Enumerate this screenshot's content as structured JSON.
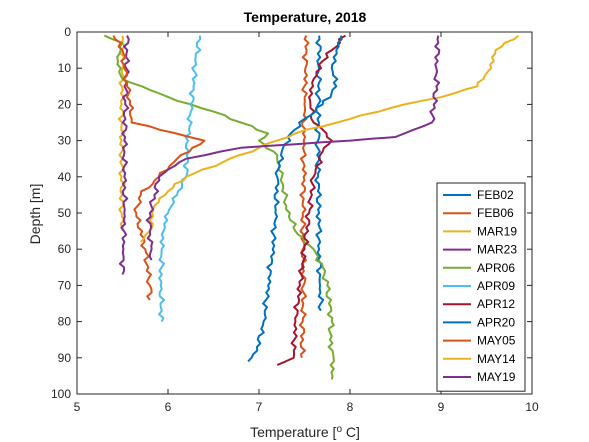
{
  "chart_data": {
    "type": "line",
    "title": "Temperature, 2018",
    "xlabel": "Temperature [",
    "xlabel_sup": "o",
    "xlabel_end": " C]",
    "ylabel": "Depth [m]",
    "xlim": [
      5,
      10
    ],
    "ylim": [
      0,
      100
    ],
    "y_reversed": true,
    "xticks": [
      "5",
      "6",
      "7",
      "8",
      "9",
      "10"
    ],
    "yticks": [
      "0",
      "10",
      "20",
      "30",
      "40",
      "50",
      "60",
      "70",
      "80",
      "90",
      "100"
    ],
    "grid": false,
    "legend_position": "bottom-right",
    "series": [
      {
        "name": "FEB02",
        "color": "#0072BD",
        "points": [
          [
            7.66,
            1
          ],
          [
            7.66,
            10
          ],
          [
            7.65,
            20
          ],
          [
            7.65,
            30
          ],
          [
            7.65,
            40
          ],
          [
            7.66,
            50
          ],
          [
            7.66,
            60
          ],
          [
            7.67,
            70
          ],
          [
            7.68,
            77
          ]
        ]
      },
      {
        "name": "FEB06",
        "color": "#D95319",
        "points": [
          [
            7.52,
            1
          ],
          [
            7.51,
            10
          ],
          [
            7.5,
            20
          ],
          [
            7.49,
            30
          ],
          [
            7.49,
            40
          ],
          [
            7.48,
            50
          ],
          [
            7.48,
            60
          ],
          [
            7.49,
            70
          ],
          [
            7.48,
            80
          ],
          [
            7.47,
            90
          ]
        ]
      },
      {
        "name": "MAR19",
        "color": "#EDB120",
        "points": [
          [
            5.5,
            1
          ],
          [
            5.5,
            10
          ],
          [
            5.49,
            20
          ],
          [
            5.49,
            30
          ],
          [
            5.49,
            40
          ],
          [
            5.49,
            50
          ],
          [
            5.5,
            55
          ]
        ]
      },
      {
        "name": "MAR23",
        "color": "#7E2F8E",
        "points": [
          [
            5.55,
            1
          ],
          [
            5.54,
            10
          ],
          [
            5.53,
            20
          ],
          [
            5.52,
            30
          ],
          [
            5.52,
            40
          ],
          [
            5.52,
            50
          ],
          [
            5.51,
            60
          ],
          [
            5.5,
            67
          ]
        ]
      },
      {
        "name": "APR06",
        "color": "#77AC30",
        "points": [
          [
            5.3,
            1
          ],
          [
            5.5,
            3
          ],
          [
            5.45,
            8
          ],
          [
            5.5,
            13
          ],
          [
            5.8,
            16
          ],
          [
            6.1,
            19
          ],
          [
            6.5,
            22
          ],
          [
            6.8,
            25
          ],
          [
            7.1,
            28
          ],
          [
            7.0,
            30
          ],
          [
            7.2,
            34
          ],
          [
            7.25,
            40
          ],
          [
            7.3,
            48
          ],
          [
            7.4,
            55
          ],
          [
            7.6,
            60
          ],
          [
            7.7,
            65
          ],
          [
            7.75,
            70
          ],
          [
            7.8,
            80
          ],
          [
            7.78,
            85
          ],
          [
            7.82,
            90
          ],
          [
            7.8,
            96
          ]
        ]
      },
      {
        "name": "APR09",
        "color": "#4DBEEE",
        "points": [
          [
            6.35,
            1
          ],
          [
            6.3,
            8
          ],
          [
            6.28,
            15
          ],
          [
            6.25,
            22
          ],
          [
            6.22,
            30
          ],
          [
            6.2,
            40
          ],
          [
            6.1,
            45
          ],
          [
            6.0,
            50
          ],
          [
            5.95,
            55
          ],
          [
            5.93,
            60
          ],
          [
            5.92,
            70
          ],
          [
            5.93,
            80
          ]
        ]
      },
      {
        "name": "APR12",
        "color": "#A2142F",
        "points": [
          [
            7.95,
            1
          ],
          [
            7.8,
            5
          ],
          [
            7.7,
            8
          ],
          [
            7.6,
            13
          ],
          [
            7.55,
            18
          ],
          [
            7.6,
            25
          ],
          [
            7.7,
            27
          ],
          [
            7.8,
            30
          ],
          [
            7.7,
            33
          ],
          [
            7.6,
            40
          ],
          [
            7.55,
            50
          ],
          [
            7.5,
            60
          ],
          [
            7.45,
            70
          ],
          [
            7.4,
            80
          ],
          [
            7.38,
            90
          ],
          [
            7.2,
            92
          ]
        ]
      },
      {
        "name": "APR20",
        "color": "#0072BD",
        "points": [
          [
            7.9,
            1
          ],
          [
            7.85,
            5
          ],
          [
            7.8,
            10
          ],
          [
            7.85,
            15
          ],
          [
            7.7,
            20
          ],
          [
            7.5,
            24
          ],
          [
            7.35,
            28
          ],
          [
            7.25,
            33
          ],
          [
            7.2,
            40
          ],
          [
            7.18,
            50
          ],
          [
            7.15,
            60
          ],
          [
            7.1,
            70
          ],
          [
            7.05,
            80
          ],
          [
            6.98,
            88
          ],
          [
            6.88,
            91
          ]
        ]
      },
      {
        "name": "MAY05",
        "color": "#D95319",
        "points": [
          [
            5.4,
            1
          ],
          [
            5.5,
            5
          ],
          [
            5.52,
            10
          ],
          [
            5.55,
            15
          ],
          [
            5.58,
            20
          ],
          [
            5.6,
            25
          ],
          [
            6.4,
            30
          ],
          [
            6.1,
            35
          ],
          [
            5.9,
            40
          ],
          [
            5.7,
            45
          ],
          [
            5.65,
            50
          ],
          [
            5.75,
            60
          ],
          [
            5.8,
            70
          ],
          [
            5.8,
            74
          ]
        ]
      },
      {
        "name": "MAY14",
        "color": "#EDB120",
        "points": [
          [
            9.85,
            1
          ],
          [
            9.6,
            5
          ],
          [
            9.55,
            10
          ],
          [
            9.4,
            15
          ],
          [
            9.0,
            18
          ],
          [
            8.6,
            20
          ],
          [
            8.0,
            24
          ],
          [
            7.4,
            28
          ],
          [
            7.0,
            32
          ],
          [
            6.6,
            36
          ],
          [
            6.2,
            40
          ],
          [
            6.0,
            44
          ],
          [
            5.85,
            48
          ],
          [
            5.8,
            55
          ],
          [
            5.7,
            58
          ]
        ]
      },
      {
        "name": "MAY19",
        "color": "#7E2F8E",
        "points": [
          [
            8.97,
            1
          ],
          [
            8.95,
            10
          ],
          [
            8.95,
            15
          ],
          [
            8.92,
            20
          ],
          [
            8.9,
            25
          ],
          [
            8.7,
            27
          ],
          [
            8.5,
            29
          ],
          [
            8.0,
            30
          ],
          [
            7.4,
            31
          ],
          [
            6.8,
            32
          ],
          [
            6.2,
            35
          ],
          [
            6.0,
            38
          ],
          [
            5.9,
            40
          ],
          [
            5.85,
            45
          ],
          [
            5.8,
            50
          ],
          [
            5.8,
            55
          ],
          [
            5.82,
            60
          ],
          [
            5.82,
            63
          ]
        ]
      }
    ]
  }
}
